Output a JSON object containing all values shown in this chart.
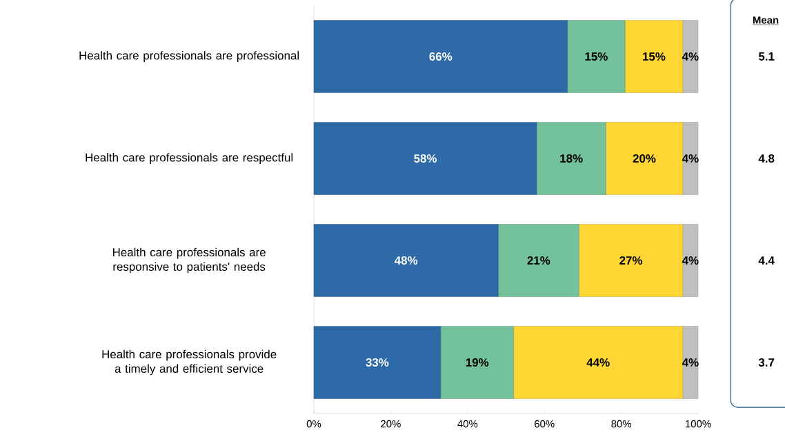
{
  "chart_data": {
    "type": "bar",
    "orientation": "horizontal",
    "stacked": true,
    "categories": [
      "Health care professionals are professional",
      "Health care professionals are respectful",
      "Health care professionals are responsive to patients' needs",
      "Health care professionals provide a timely and efficient service"
    ],
    "series": [
      {
        "color": "#2e6aa8",
        "values": [
          66,
          58,
          48,
          33
        ],
        "value_labels": [
          "66%",
          "58%",
          "48%",
          "33%"
        ]
      },
      {
        "color": "#74c29c",
        "values": [
          15,
          18,
          21,
          19
        ],
        "value_labels": [
          "15%",
          "18%",
          "21%",
          "19%"
        ]
      },
      {
        "color": "#ffd633",
        "values": [
          15,
          20,
          27,
          44
        ],
        "value_labels": [
          "15%",
          "20%",
          "27%",
          "44%"
        ]
      },
      {
        "color": "#bfbfbf",
        "values": [
          4,
          4,
          4,
          4
        ],
        "value_labels": [
          "4%",
          "4%",
          "4%",
          "4%"
        ]
      }
    ],
    "xlim": [
      0,
      100
    ],
    "xticks": [
      {
        "value": 0,
        "label": "0%"
      },
      {
        "value": 20,
        "label": "20%"
      },
      {
        "value": 40,
        "label": "40%"
      },
      {
        "value": 60,
        "label": "60%"
      },
      {
        "value": 80,
        "label": "80%"
      },
      {
        "value": 100,
        "label": "100%"
      }
    ],
    "grid": false,
    "annotations": [
      "Mean",
      "5.1",
      "4.8",
      "4.4",
      "3.7"
    ]
  }
}
